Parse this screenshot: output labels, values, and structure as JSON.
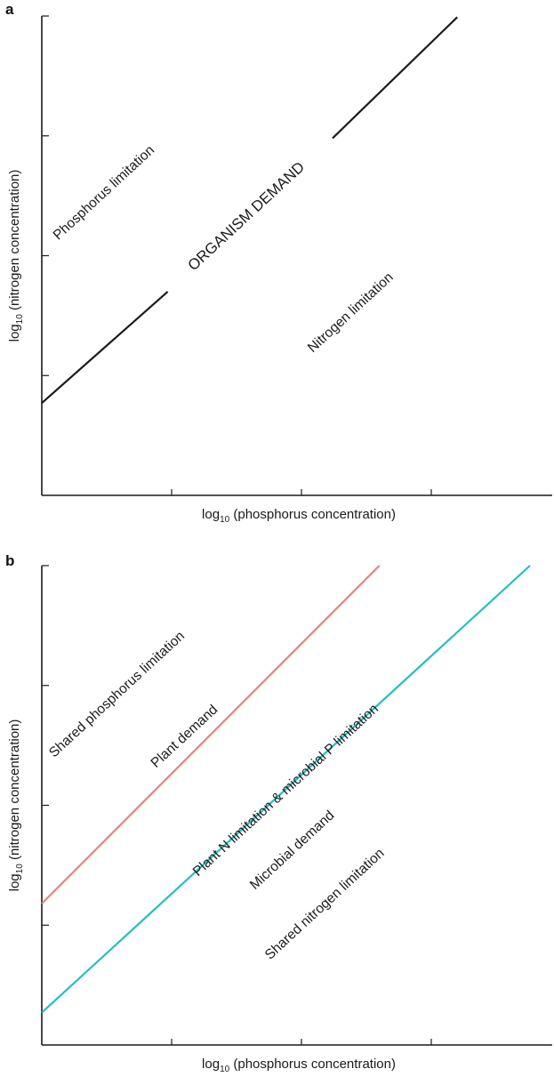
{
  "chart_data": [
    {
      "panel": "a",
      "type": "line",
      "xlabel": {
        "prefix": "log",
        "sub": "10",
        "rest": " (phosphorus concentration)"
      },
      "ylabel": {
        "prefix": "log",
        "sub": "10",
        "rest": " (nitrogen concentration)"
      },
      "xlim": [
        0,
        4
      ],
      "ylim": [
        0,
        4
      ],
      "x_ticks": [
        1,
        2,
        3
      ],
      "y_ticks": [
        1,
        2,
        3,
        4
      ],
      "series": [
        {
          "color": "#1a1a1a",
          "segments": [
            [
              [
                0,
                0.77
              ],
              [
                0.97,
                1.7
              ]
            ],
            [
              [
                2.24,
                2.98
              ],
              [
                3.2,
                3.99
              ]
            ]
          ]
        }
      ],
      "annotations": [
        {
          "text": "Phosphorus limitation",
          "x": 0.5,
          "y": 2.5,
          "kind": "region"
        },
        {
          "text": "ORGANISM DEMAND",
          "x": 1.6,
          "y": 2.3,
          "kind": "demand"
        },
        {
          "text": "Nitrogen limitation",
          "x": 2.4,
          "y": 1.5,
          "kind": "region"
        }
      ]
    },
    {
      "panel": "b",
      "type": "line",
      "xlabel": {
        "prefix": "log",
        "sub": "10",
        "rest": " (phosphorus concentration)"
      },
      "ylabel": {
        "prefix": "log",
        "sub": "10",
        "rest": " (nitrogen concentration)"
      },
      "xlim": [
        0,
        4
      ],
      "ylim": [
        0,
        4
      ],
      "x_ticks": [
        1,
        2,
        3
      ],
      "y_ticks": [
        1,
        2,
        3,
        4
      ],
      "series": [
        {
          "name": "Plant demand",
          "color": "#e8837c",
          "segments": [
            [
              [
                0,
                1.18
              ],
              [
                2.6,
                4
              ]
            ]
          ]
        },
        {
          "name": "Microbial demand",
          "color": "#22bfbf",
          "segments": [
            [
              [
                0,
                0.27
              ],
              [
                3.76,
                4
              ]
            ]
          ]
        }
      ],
      "annotations": [
        {
          "text": "Shared phosphorus limitation",
          "x": 0.6,
          "y": 2.9,
          "kind": "region",
          "color": "#1a1a1a"
        },
        {
          "text": "Plant demand",
          "x": 1.12,
          "y": 2.55,
          "kind": "region",
          "color": "#e8837c"
        },
        {
          "text": "Plant N limitation & microbial P limitation",
          "x": 1.9,
          "y": 2.1,
          "kind": "region",
          "color": "#bdbdbd"
        },
        {
          "text": "Microbial demand",
          "x": 1.95,
          "y": 1.6,
          "kind": "region",
          "color": "#22bfbf"
        },
        {
          "text": "Shared nitrogen limitation",
          "x": 2.2,
          "y": 1.15,
          "kind": "region",
          "color": "#1a1a1a"
        }
      ]
    }
  ]
}
